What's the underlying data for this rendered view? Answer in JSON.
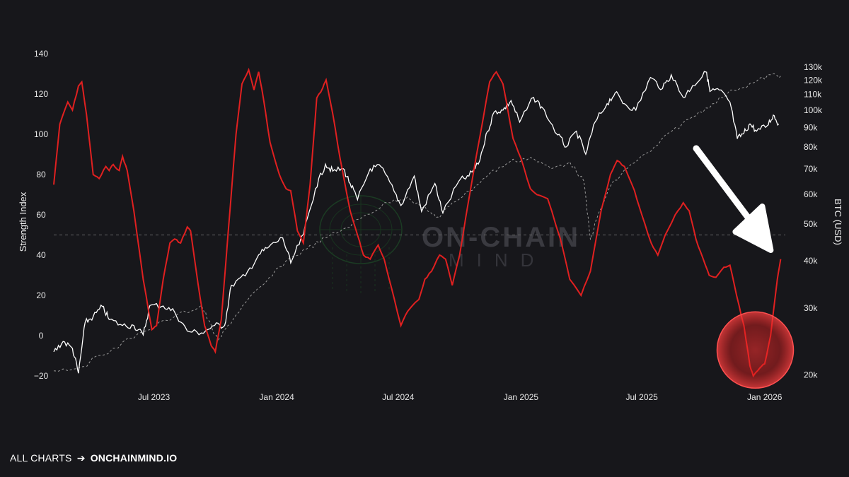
{
  "footer": {
    "prefix": "ALL CHARTS",
    "arrow": "➔",
    "site": "ONCHAINMIND.IO"
  },
  "watermark": {
    "line1": "ON-CHAIN",
    "line2": "MIND"
  },
  "colors": {
    "background": "#17171b",
    "strength": "#e02020",
    "btc": "#ffffff",
    "btc_trend": "#9a9a9a",
    "highlight": "#e02020",
    "reference": "#666666"
  },
  "chart_data": {
    "type": "line",
    "x_axis": {
      "start": "2023-02-01",
      "end": "2026-02-01",
      "tick_labels": [
        "Jul 2023",
        "Jan 2024",
        "Jul 2024",
        "Jan 2025",
        "Jul 2025",
        "Jan 2026"
      ],
      "tick_dates": [
        "2023-07-01",
        "2024-01-01",
        "2024-07-01",
        "2025-01-01",
        "2025-07-01",
        "2026-01-01"
      ]
    },
    "left_axis": {
      "label": "Strength Index",
      "ylim": [
        -20,
        140
      ],
      "ticks": [
        -20,
        0,
        20,
        40,
        60,
        80,
        100,
        120,
        140
      ],
      "reference_line": 50
    },
    "right_axis": {
      "label": "BTC (USD)",
      "scale": "log",
      "ylim": [
        18000,
        135000
      ],
      "ticks": [
        20000,
        30000,
        40000,
        50000,
        60000,
        70000,
        80000,
        90000,
        100000,
        110000,
        120000,
        130000
      ],
      "tick_labels": [
        "20k",
        "30k",
        "40k",
        "50k",
        "60k",
        "70k",
        "80k",
        "90k",
        "100k",
        "110k",
        "120k",
        "130k"
      ]
    },
    "series": [
      {
        "axis": "left",
        "points": [
          [
            "2023-02-01",
            75
          ],
          [
            "2023-02-10",
            105
          ],
          [
            "2023-02-22",
            116
          ],
          [
            "2023-03-01",
            112
          ],
          [
            "2023-03-10",
            124
          ],
          [
            "2023-03-15",
            126
          ],
          [
            "2023-03-22",
            110
          ],
          [
            "2023-04-01",
            80
          ],
          [
            "2023-04-10",
            78
          ],
          [
            "2023-04-20",
            84
          ],
          [
            "2023-04-25",
            82
          ],
          [
            "2023-05-01",
            85
          ],
          [
            "2023-05-10",
            82
          ],
          [
            "2023-05-15",
            89
          ],
          [
            "2023-05-22",
            82
          ],
          [
            "2023-06-01",
            62
          ],
          [
            "2023-06-15",
            28
          ],
          [
            "2023-06-28",
            3
          ],
          [
            "2023-07-05",
            5
          ],
          [
            "2023-07-15",
            28
          ],
          [
            "2023-07-25",
            46
          ],
          [
            "2023-08-01",
            48
          ],
          [
            "2023-08-10",
            46
          ],
          [
            "2023-08-20",
            54
          ],
          [
            "2023-08-25",
            52
          ],
          [
            "2023-09-05",
            26
          ],
          [
            "2023-09-15",
            5
          ],
          [
            "2023-09-25",
            -5
          ],
          [
            "2023-10-01",
            -8
          ],
          [
            "2023-10-10",
            8
          ],
          [
            "2023-10-20",
            50
          ],
          [
            "2023-11-01",
            100
          ],
          [
            "2023-11-10",
            125
          ],
          [
            "2023-11-20",
            132
          ],
          [
            "2023-11-28",
            122
          ],
          [
            "2023-12-05",
            131
          ],
          [
            "2023-12-12",
            118
          ],
          [
            "2023-12-22",
            96
          ],
          [
            "2024-01-05",
            80
          ],
          [
            "2024-01-15",
            73
          ],
          [
            "2024-01-22",
            72
          ],
          [
            "2024-02-01",
            52
          ],
          [
            "2024-02-10",
            46
          ],
          [
            "2024-02-20",
            75
          ],
          [
            "2024-03-01",
            118
          ],
          [
            "2024-03-10",
            123
          ],
          [
            "2024-03-15",
            127
          ],
          [
            "2024-03-25",
            110
          ],
          [
            "2024-04-05",
            88
          ],
          [
            "2024-04-20",
            62
          ],
          [
            "2024-05-01",
            50
          ],
          [
            "2024-05-10",
            40
          ],
          [
            "2024-05-20",
            38
          ],
          [
            "2024-06-01",
            45
          ],
          [
            "2024-06-10",
            38
          ],
          [
            "2024-06-20",
            25
          ],
          [
            "2024-07-05",
            5
          ],
          [
            "2024-07-15",
            12
          ],
          [
            "2024-08-01",
            18
          ],
          [
            "2024-08-10",
            28
          ],
          [
            "2024-08-20",
            32
          ],
          [
            "2024-09-01",
            40
          ],
          [
            "2024-09-10",
            38
          ],
          [
            "2024-09-20",
            25
          ],
          [
            "2024-10-01",
            40
          ],
          [
            "2024-10-15",
            68
          ],
          [
            "2024-11-01",
            100
          ],
          [
            "2024-11-15",
            126
          ],
          [
            "2024-11-25",
            131
          ],
          [
            "2024-12-05",
            125
          ],
          [
            "2024-12-20",
            98
          ],
          [
            "2025-01-01",
            88
          ],
          [
            "2025-01-15",
            73
          ],
          [
            "2025-01-25",
            70
          ],
          [
            "2025-02-10",
            68
          ],
          [
            "2025-03-01",
            48
          ],
          [
            "2025-03-15",
            28
          ],
          [
            "2025-04-01",
            20
          ],
          [
            "2025-04-15",
            32
          ],
          [
            "2025-05-01",
            62
          ],
          [
            "2025-05-15",
            80
          ],
          [
            "2025-05-25",
            87
          ],
          [
            "2025-06-05",
            84
          ],
          [
            "2025-06-20",
            72
          ],
          [
            "2025-07-01",
            60
          ],
          [
            "2025-07-15",
            46
          ],
          [
            "2025-07-25",
            40
          ],
          [
            "2025-08-05",
            50
          ],
          [
            "2025-08-20",
            60
          ],
          [
            "2025-09-01",
            66
          ],
          [
            "2025-09-10",
            62
          ],
          [
            "2025-09-20",
            48
          ],
          [
            "2025-10-01",
            38
          ],
          [
            "2025-10-10",
            30
          ],
          [
            "2025-10-20",
            29
          ],
          [
            "2025-11-01",
            34
          ],
          [
            "2025-11-10",
            35
          ],
          [
            "2025-11-20",
            20
          ],
          [
            "2025-12-01",
            5
          ],
          [
            "2025-12-10",
            -15
          ],
          [
            "2025-12-15",
            -20
          ],
          [
            "2025-12-25",
            -16
          ],
          [
            "2026-01-01",
            -14
          ],
          [
            "2026-01-10",
            0
          ],
          [
            "2026-01-20",
            28
          ],
          [
            "2026-01-25",
            38
          ]
        ]
      },
      {
        "axis": "right",
        "points": [
          [
            "2023-02-01",
            23000
          ],
          [
            "2023-02-15",
            24500
          ],
          [
            "2023-03-01",
            23500
          ],
          [
            "2023-03-10",
            20200
          ],
          [
            "2023-03-20",
            27500
          ],
          [
            "2023-04-01",
            28500
          ],
          [
            "2023-04-15",
            30300
          ],
          [
            "2023-04-25",
            28000
          ],
          [
            "2023-05-15",
            27000
          ],
          [
            "2023-06-01",
            27000
          ],
          [
            "2023-06-15",
            25500
          ],
          [
            "2023-06-25",
            30500
          ],
          [
            "2023-07-15",
            30400
          ],
          [
            "2023-08-01",
            29300
          ],
          [
            "2023-08-20",
            26100
          ],
          [
            "2023-09-10",
            25800
          ],
          [
            "2023-09-30",
            27000
          ],
          [
            "2023-10-15",
            27000
          ],
          [
            "2023-10-25",
            34500
          ],
          [
            "2023-11-15",
            36500
          ],
          [
            "2023-12-05",
            41500
          ],
          [
            "2023-12-20",
            43500
          ],
          [
            "2024-01-10",
            46000
          ],
          [
            "2024-01-22",
            39500
          ],
          [
            "2024-02-10",
            47000
          ],
          [
            "2024-02-28",
            62000
          ],
          [
            "2024-03-14",
            72000
          ],
          [
            "2024-03-25",
            69000
          ],
          [
            "2024-04-10",
            70000
          ],
          [
            "2024-04-20",
            64000
          ],
          [
            "2024-05-01",
            58000
          ],
          [
            "2024-05-20",
            70000
          ],
          [
            "2024-06-05",
            71000
          ],
          [
            "2024-06-25",
            61000
          ],
          [
            "2024-07-05",
            56000
          ],
          [
            "2024-07-25",
            67000
          ],
          [
            "2024-08-05",
            54000
          ],
          [
            "2024-08-25",
            64000
          ],
          [
            "2024-09-06",
            53500
          ],
          [
            "2024-09-30",
            65000
          ],
          [
            "2024-10-15",
            67000
          ],
          [
            "2024-10-29",
            72000
          ],
          [
            "2024-11-12",
            88000
          ],
          [
            "2024-11-22",
            99000
          ],
          [
            "2024-12-05",
            100000
          ],
          [
            "2024-12-17",
            106000
          ],
          [
            "2024-12-30",
            93000
          ],
          [
            "2025-01-20",
            108000
          ],
          [
            "2025-02-01",
            102000
          ],
          [
            "2025-02-25",
            86000
          ],
          [
            "2025-03-10",
            80000
          ],
          [
            "2025-03-25",
            88000
          ],
          [
            "2025-04-08",
            76500
          ],
          [
            "2025-04-22",
            93000
          ],
          [
            "2025-05-10",
            104000
          ],
          [
            "2025-05-22",
            111000
          ],
          [
            "2025-06-05",
            104000
          ],
          [
            "2025-06-22",
            100000
          ],
          [
            "2025-07-14",
            122000
          ],
          [
            "2025-08-01",
            114000
          ],
          [
            "2025-08-14",
            124000
          ],
          [
            "2025-09-01",
            108000
          ],
          [
            "2025-09-15",
            116000
          ],
          [
            "2025-10-06",
            126000
          ],
          [
            "2025-10-11",
            112000
          ],
          [
            "2025-10-25",
            113000
          ],
          [
            "2025-11-10",
            105000
          ],
          [
            "2025-11-21",
            84000
          ],
          [
            "2025-12-01",
            87000
          ],
          [
            "2025-12-10",
            92000
          ],
          [
            "2025-12-20",
            88000
          ],
          [
            "2026-01-05",
            91000
          ],
          [
            "2026-01-14",
            97000
          ],
          [
            "2026-01-22",
            92000
          ]
        ]
      },
      {
        "axis": "right",
        "style": "dashed",
        "points": [
          [
            "2023-02-01",
            20500
          ],
          [
            "2023-03-15",
            21000
          ],
          [
            "2023-05-01",
            23500
          ],
          [
            "2023-06-15",
            26000
          ],
          [
            "2023-08-01",
            28500
          ],
          [
            "2023-09-10",
            30500
          ],
          [
            "2023-09-20",
            28000
          ],
          [
            "2023-10-05",
            24500
          ],
          [
            "2023-10-20",
            27000
          ],
          [
            "2023-11-15",
            31000
          ],
          [
            "2023-12-15",
            35000
          ],
          [
            "2024-01-15",
            40000
          ],
          [
            "2024-02-15",
            43000
          ],
          [
            "2024-03-15",
            46000
          ],
          [
            "2024-04-15",
            49000
          ],
          [
            "2024-05-15",
            53000
          ],
          [
            "2024-06-15",
            57000
          ],
          [
            "2024-07-15",
            59000
          ],
          [
            "2024-08-15",
            54000
          ],
          [
            "2024-09-01",
            52000
          ],
          [
            "2024-09-20",
            57000
          ],
          [
            "2024-10-15",
            61000
          ],
          [
            "2024-11-15",
            68000
          ],
          [
            "2024-12-15",
            73000
          ],
          [
            "2025-01-15",
            75000
          ],
          [
            "2025-02-15",
            70000
          ],
          [
            "2025-03-15",
            73000
          ],
          [
            "2025-04-05",
            65000
          ],
          [
            "2025-04-15",
            45500
          ],
          [
            "2025-04-25",
            52000
          ],
          [
            "2025-05-15",
            63000
          ],
          [
            "2025-06-15",
            72000
          ],
          [
            "2025-07-15",
            78000
          ],
          [
            "2025-08-15",
            88000
          ],
          [
            "2025-09-15",
            96000
          ],
          [
            "2025-10-15",
            104000
          ],
          [
            "2025-11-15",
            113000
          ],
          [
            "2025-12-15",
            118000
          ],
          [
            "2026-01-10",
            124000
          ],
          [
            "2026-01-25",
            123000
          ]
        ]
      }
    ],
    "annotations": [
      {
        "type": "arrow",
        "points_to": "2026-01-25"
      },
      {
        "type": "highlight-circle",
        "center_date": "2025-12-18",
        "center_value": -5
      }
    ]
  }
}
